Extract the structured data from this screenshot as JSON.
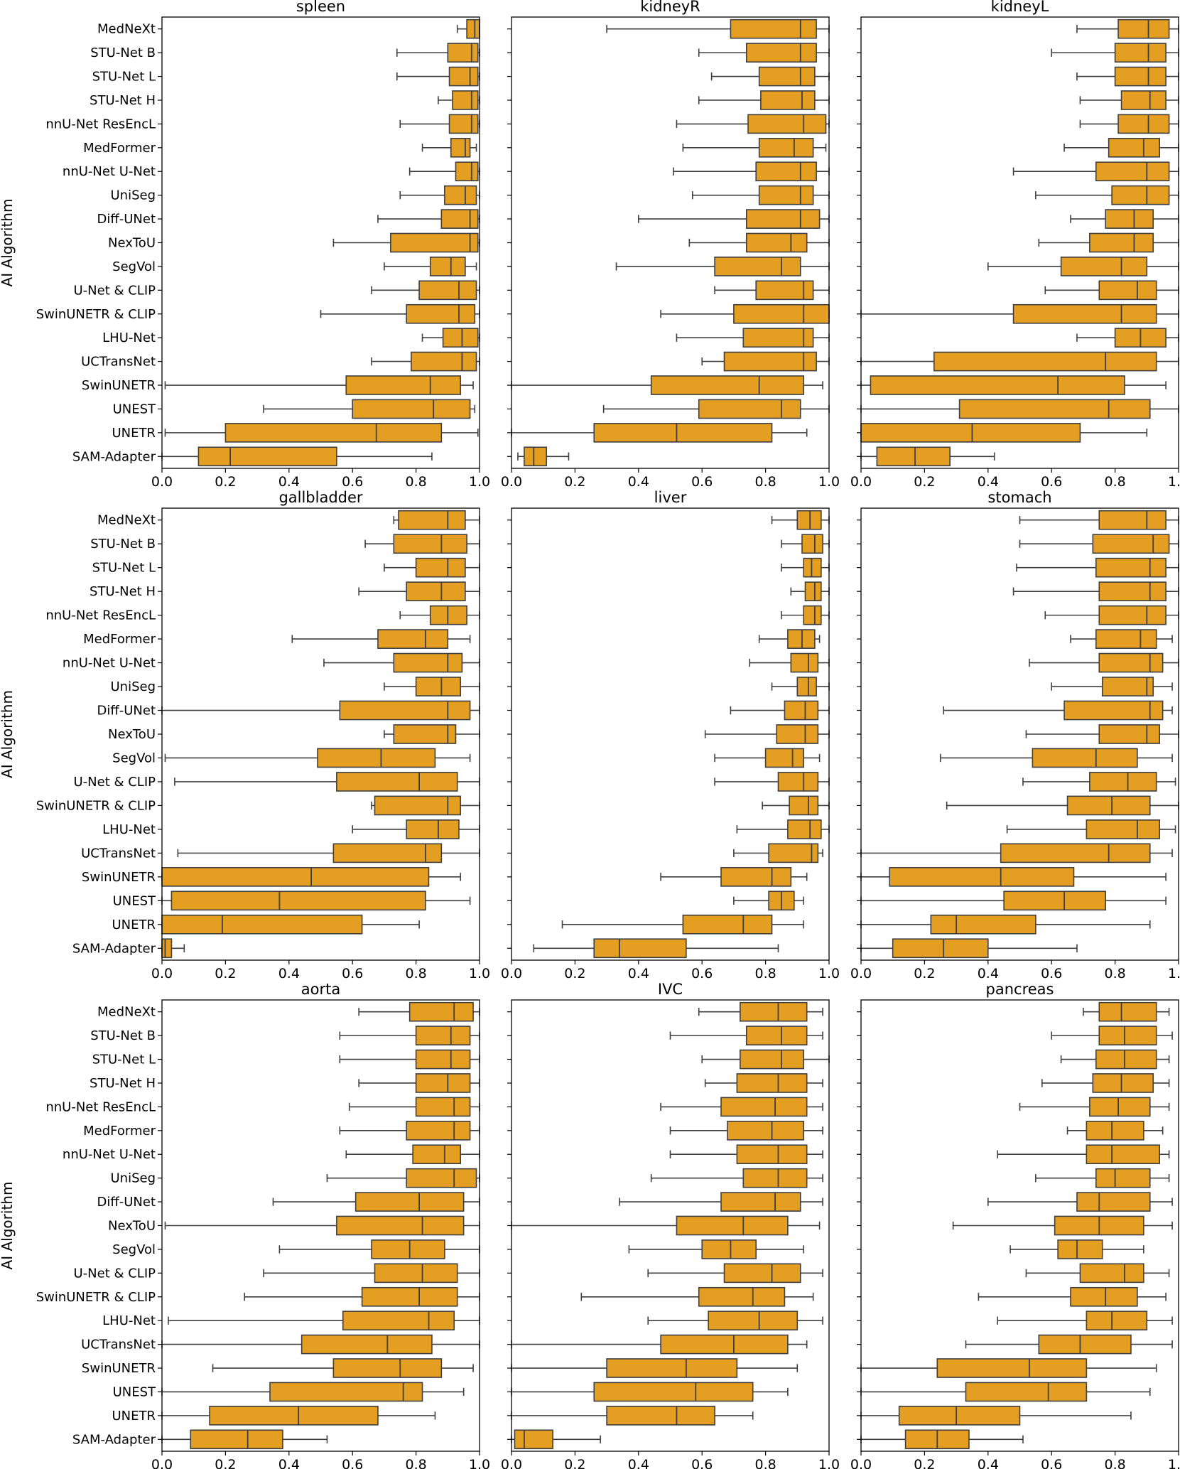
{
  "colors": {
    "box_fill": "#E49E22",
    "line": "#3F3F3F",
    "frame": "#000000"
  },
  "ylabel": "AI Algorithm",
  "categories": [
    "MedNeXt",
    "STU-Net B",
    "STU-Net L",
    "STU-Net H",
    "nnU-Net ResEncL",
    "MedFormer",
    "nnU-Net U-Net",
    "UniSeg",
    "Diff-UNet",
    "NexToU",
    "SegVol",
    "U-Net & CLIP",
    "SwinUNETR & CLIP",
    "LHU-Net",
    "UCTransNet",
    "SwinUNETR",
    "UNEST",
    "UNETR",
    "SAM-Adapter"
  ],
  "xticks": [
    "0.0",
    "0.2",
    "0.4",
    "0.6",
    "0.8",
    "1.0"
  ],
  "chart_data": [
    {
      "type": "boxplot",
      "title": "spleen",
      "xlim": [
        0,
        1
      ],
      "boxes": [
        [
          0.93,
          0.96,
          0.985,
          1.0,
          1.0
        ],
        [
          0.74,
          0.9,
          0.975,
          0.995,
          1.0
        ],
        [
          0.74,
          0.905,
          0.97,
          0.995,
          1.0
        ],
        [
          0.87,
          0.915,
          0.975,
          0.995,
          1.0
        ],
        [
          0.75,
          0.905,
          0.975,
          0.995,
          1.0
        ],
        [
          0.82,
          0.91,
          0.955,
          0.97,
          0.99
        ],
        [
          0.78,
          0.925,
          0.975,
          0.995,
          1.0
        ],
        [
          0.75,
          0.89,
          0.955,
          0.99,
          1.0
        ],
        [
          0.68,
          0.88,
          0.97,
          0.995,
          1.0
        ],
        [
          0.54,
          0.72,
          0.97,
          0.995,
          1.0
        ],
        [
          0.7,
          0.845,
          0.91,
          0.955,
          0.99
        ],
        [
          0.66,
          0.81,
          0.935,
          0.99,
          1.0
        ],
        [
          0.5,
          0.77,
          0.935,
          0.985,
          1.0
        ],
        [
          0.82,
          0.885,
          0.945,
          0.995,
          1.0
        ],
        [
          0.66,
          0.785,
          0.945,
          0.99,
          1.0
        ],
        [
          0.01,
          0.58,
          0.845,
          0.94,
          0.98
        ],
        [
          0.32,
          0.6,
          0.855,
          0.97,
          0.985
        ],
        [
          0.01,
          0.2,
          0.675,
          0.88,
          0.995
        ],
        [
          0.0,
          0.115,
          0.215,
          0.55,
          0.85
        ]
      ]
    },
    {
      "type": "boxplot",
      "title": "kidneyR",
      "xlim": [
        0,
        1
      ],
      "boxes": [
        [
          0.3,
          0.69,
          0.91,
          0.96,
          1.0
        ],
        [
          0.59,
          0.74,
          0.91,
          0.96,
          1.0
        ],
        [
          0.63,
          0.78,
          0.91,
          0.955,
          1.0
        ],
        [
          0.59,
          0.785,
          0.915,
          0.955,
          1.0
        ],
        [
          0.52,
          0.745,
          0.92,
          0.99,
          1.0
        ],
        [
          0.54,
          0.78,
          0.89,
          0.95,
          0.99
        ],
        [
          0.51,
          0.77,
          0.91,
          0.96,
          1.0
        ],
        [
          0.57,
          0.78,
          0.91,
          0.95,
          1.0
        ],
        [
          0.4,
          0.74,
          0.91,
          0.97,
          1.0
        ],
        [
          0.56,
          0.74,
          0.88,
          0.93,
          1.0
        ],
        [
          0.33,
          0.64,
          0.85,
          0.91,
          1.0
        ],
        [
          0.64,
          0.77,
          0.92,
          0.95,
          1.0
        ],
        [
          0.47,
          0.7,
          0.92,
          1.0,
          1.0
        ],
        [
          0.52,
          0.73,
          0.92,
          0.95,
          1.0
        ],
        [
          0.6,
          0.67,
          0.92,
          0.96,
          1.0
        ],
        [
          0.0,
          0.44,
          0.78,
          0.92,
          0.98
        ],
        [
          0.29,
          0.59,
          0.85,
          0.91,
          1.0
        ],
        [
          0.0,
          0.26,
          0.52,
          0.82,
          0.93
        ],
        [
          0.02,
          0.04,
          0.07,
          0.11,
          0.18
        ]
      ]
    },
    {
      "type": "boxplot",
      "title": "kidneyL",
      "xlim": [
        0,
        1
      ],
      "boxes": [
        [
          0.68,
          0.81,
          0.905,
          0.97,
          1.0
        ],
        [
          0.6,
          0.8,
          0.905,
          0.96,
          1.0
        ],
        [
          0.68,
          0.8,
          0.905,
          0.96,
          1.0
        ],
        [
          0.69,
          0.82,
          0.91,
          0.96,
          1.0
        ],
        [
          0.69,
          0.81,
          0.905,
          0.97,
          1.0
        ],
        [
          0.64,
          0.78,
          0.89,
          0.94,
          1.0
        ],
        [
          0.48,
          0.74,
          0.9,
          0.97,
          1.0
        ],
        [
          0.55,
          0.79,
          0.9,
          0.97,
          1.0
        ],
        [
          0.66,
          0.77,
          0.86,
          0.92,
          1.0
        ],
        [
          0.56,
          0.72,
          0.86,
          0.92,
          1.0
        ],
        [
          0.4,
          0.63,
          0.82,
          0.9,
          1.0
        ],
        [
          0.58,
          0.75,
          0.87,
          0.93,
          1.0
        ],
        [
          0.0,
          0.48,
          0.82,
          0.93,
          1.0
        ],
        [
          0.68,
          0.8,
          0.88,
          0.96,
          1.0
        ],
        [
          0.0,
          0.23,
          0.77,
          0.93,
          1.0
        ],
        [
          0.0,
          0.03,
          0.62,
          0.83,
          0.96
        ],
        [
          0.0,
          0.31,
          0.78,
          0.91,
          1.0
        ],
        [
          0.0,
          0.0,
          0.35,
          0.69,
          0.9
        ],
        [
          0.0,
          0.05,
          0.17,
          0.28,
          0.42
        ]
      ]
    },
    {
      "type": "boxplot",
      "title": "gallbladder",
      "xlim": [
        0,
        1
      ],
      "boxes": [
        [
          0.73,
          0.745,
          0.9,
          0.955,
          1.0
        ],
        [
          0.64,
          0.73,
          0.88,
          0.96,
          1.0
        ],
        [
          0.7,
          0.8,
          0.9,
          0.955,
          1.0
        ],
        [
          0.62,
          0.77,
          0.88,
          0.955,
          1.0
        ],
        [
          0.75,
          0.845,
          0.9,
          0.96,
          1.0
        ],
        [
          0.41,
          0.68,
          0.83,
          0.9,
          0.97
        ],
        [
          0.51,
          0.73,
          0.9,
          0.945,
          1.0
        ],
        [
          0.7,
          0.8,
          0.88,
          0.94,
          1.0
        ],
        [
          0.0,
          0.56,
          0.9,
          0.97,
          1.0
        ],
        [
          0.7,
          0.73,
          0.9,
          0.925,
          1.0
        ],
        [
          0.01,
          0.49,
          0.69,
          0.86,
          0.97
        ],
        [
          0.04,
          0.55,
          0.81,
          0.93,
          1.0
        ],
        [
          0.66,
          0.67,
          0.9,
          0.94,
          1.0
        ],
        [
          0.6,
          0.77,
          0.87,
          0.935,
          1.0
        ],
        [
          0.05,
          0.54,
          0.83,
          0.88,
          1.0
        ],
        [
          0.0,
          0.0,
          0.47,
          0.84,
          0.94
        ],
        [
          0.0,
          0.03,
          0.37,
          0.83,
          0.97
        ],
        [
          0.0,
          0.0,
          0.19,
          0.63,
          0.81
        ],
        [
          0.0,
          0.0,
          0.01,
          0.03,
          0.07
        ]
      ]
    },
    {
      "type": "boxplot",
      "title": "liver",
      "xlim": [
        0,
        1
      ],
      "boxes": [
        [
          0.82,
          0.9,
          0.94,
          0.975,
          1.0
        ],
        [
          0.85,
          0.915,
          0.955,
          0.98,
          1.0
        ],
        [
          0.85,
          0.92,
          0.945,
          0.975,
          1.0
        ],
        [
          0.88,
          0.925,
          0.955,
          0.975,
          1.0
        ],
        [
          0.85,
          0.92,
          0.955,
          0.975,
          1.0
        ],
        [
          0.78,
          0.87,
          0.915,
          0.955,
          0.97
        ],
        [
          0.75,
          0.88,
          0.935,
          0.965,
          1.0
        ],
        [
          0.82,
          0.9,
          0.935,
          0.96,
          1.0
        ],
        [
          0.69,
          0.86,
          0.925,
          0.965,
          1.0
        ],
        [
          0.61,
          0.835,
          0.925,
          0.965,
          1.0
        ],
        [
          0.64,
          0.8,
          0.885,
          0.92,
          0.97
        ],
        [
          0.64,
          0.84,
          0.92,
          0.965,
          1.0
        ],
        [
          0.79,
          0.875,
          0.935,
          0.965,
          1.0
        ],
        [
          0.71,
          0.87,
          0.94,
          0.975,
          1.0
        ],
        [
          0.7,
          0.81,
          0.945,
          0.965,
          0.98
        ],
        [
          0.47,
          0.66,
          0.82,
          0.88,
          0.93
        ],
        [
          0.7,
          0.81,
          0.85,
          0.89,
          0.92
        ],
        [
          0.16,
          0.54,
          0.73,
          0.82,
          0.92
        ],
        [
          0.07,
          0.26,
          0.34,
          0.55,
          0.84
        ]
      ]
    },
    {
      "type": "boxplot",
      "title": "stomach",
      "xlim": [
        0,
        1
      ],
      "boxes": [
        [
          0.5,
          0.75,
          0.9,
          0.96,
          1.0
        ],
        [
          0.5,
          0.73,
          0.92,
          0.97,
          1.0
        ],
        [
          0.49,
          0.74,
          0.91,
          0.96,
          1.0
        ],
        [
          0.48,
          0.75,
          0.91,
          0.96,
          1.0
        ],
        [
          0.58,
          0.75,
          0.9,
          0.96,
          1.0
        ],
        [
          0.66,
          0.74,
          0.88,
          0.93,
          0.98
        ],
        [
          0.53,
          0.75,
          0.91,
          0.95,
          1.0
        ],
        [
          0.6,
          0.76,
          0.9,
          0.92,
          0.98
        ],
        [
          0.26,
          0.64,
          0.91,
          0.95,
          0.98
        ],
        [
          0.52,
          0.75,
          0.9,
          0.94,
          1.0
        ],
        [
          0.25,
          0.54,
          0.74,
          0.87,
          0.98
        ],
        [
          0.51,
          0.72,
          0.84,
          0.93,
          0.99
        ],
        [
          0.27,
          0.65,
          0.79,
          0.91,
          1.0
        ],
        [
          0.46,
          0.71,
          0.87,
          0.94,
          0.99
        ],
        [
          0.0,
          0.44,
          0.78,
          0.91,
          0.98
        ],
        [
          0.0,
          0.09,
          0.44,
          0.67,
          0.96
        ],
        [
          0.0,
          0.45,
          0.64,
          0.77,
          0.96
        ],
        [
          0.0,
          0.22,
          0.3,
          0.55,
          0.91
        ],
        [
          0.0,
          0.1,
          0.26,
          0.4,
          0.68
        ]
      ]
    },
    {
      "type": "boxplot",
      "title": "aorta",
      "xlim": [
        0,
        1
      ],
      "boxes": [
        [
          0.62,
          0.78,
          0.92,
          0.98,
          1.0
        ],
        [
          0.56,
          0.8,
          0.91,
          0.97,
          1.0
        ],
        [
          0.56,
          0.8,
          0.91,
          0.97,
          1.0
        ],
        [
          0.62,
          0.8,
          0.9,
          0.97,
          1.0
        ],
        [
          0.59,
          0.8,
          0.92,
          0.97,
          1.0
        ],
        [
          0.56,
          0.77,
          0.92,
          0.97,
          1.0
        ],
        [
          0.58,
          0.79,
          0.89,
          0.94,
          1.0
        ],
        [
          0.52,
          0.77,
          0.92,
          0.99,
          1.0
        ],
        [
          0.35,
          0.61,
          0.81,
          0.95,
          1.0
        ],
        [
          0.01,
          0.55,
          0.82,
          0.95,
          1.0
        ],
        [
          0.37,
          0.66,
          0.78,
          0.89,
          1.0
        ],
        [
          0.32,
          0.67,
          0.82,
          0.93,
          1.0
        ],
        [
          0.26,
          0.63,
          0.81,
          0.93,
          1.0
        ],
        [
          0.02,
          0.57,
          0.84,
          0.92,
          1.0
        ],
        [
          0.0,
          0.44,
          0.71,
          0.85,
          1.0
        ],
        [
          0.16,
          0.54,
          0.75,
          0.88,
          0.98
        ],
        [
          0.0,
          0.34,
          0.76,
          0.82,
          0.95
        ],
        [
          0.0,
          0.15,
          0.43,
          0.68,
          0.86
        ],
        [
          0.0,
          0.09,
          0.27,
          0.38,
          0.52
        ]
      ]
    },
    {
      "type": "boxplot",
      "title": "IVC",
      "xlim": [
        0,
        1
      ],
      "boxes": [
        [
          0.59,
          0.72,
          0.84,
          0.93,
          0.98
        ],
        [
          0.5,
          0.74,
          0.85,
          0.93,
          0.98
        ],
        [
          0.6,
          0.72,
          0.85,
          0.92,
          1.0
        ],
        [
          0.61,
          0.71,
          0.84,
          0.93,
          0.98
        ],
        [
          0.47,
          0.66,
          0.83,
          0.93,
          0.98
        ],
        [
          0.5,
          0.68,
          0.82,
          0.92,
          0.98
        ],
        [
          0.5,
          0.71,
          0.84,
          0.93,
          0.98
        ],
        [
          0.44,
          0.73,
          0.84,
          0.93,
          0.98
        ],
        [
          0.34,
          0.66,
          0.83,
          0.91,
          0.98
        ],
        [
          0.0,
          0.52,
          0.73,
          0.87,
          0.97
        ],
        [
          0.37,
          0.6,
          0.69,
          0.77,
          0.92
        ],
        [
          0.43,
          0.67,
          0.82,
          0.91,
          0.98
        ],
        [
          0.22,
          0.59,
          0.76,
          0.86,
          0.95
        ],
        [
          0.43,
          0.62,
          0.78,
          0.9,
          0.98
        ],
        [
          0.0,
          0.47,
          0.7,
          0.87,
          0.93
        ],
        [
          0.0,
          0.3,
          0.55,
          0.71,
          0.9
        ],
        [
          0.0,
          0.26,
          0.58,
          0.76,
          0.87
        ],
        [
          0.0,
          0.3,
          0.52,
          0.64,
          0.76
        ],
        [
          0.0,
          0.01,
          0.04,
          0.13,
          0.28
        ]
      ]
    },
    {
      "type": "boxplot",
      "title": "pancreas",
      "xlim": [
        0,
        1
      ],
      "boxes": [
        [
          0.7,
          0.75,
          0.82,
          0.93,
          0.97
        ],
        [
          0.6,
          0.75,
          0.83,
          0.93,
          0.98
        ],
        [
          0.63,
          0.74,
          0.83,
          0.93,
          0.97
        ],
        [
          0.57,
          0.73,
          0.82,
          0.92,
          0.97
        ],
        [
          0.5,
          0.72,
          0.81,
          0.91,
          0.97
        ],
        [
          0.65,
          0.71,
          0.79,
          0.89,
          0.95
        ],
        [
          0.43,
          0.71,
          0.79,
          0.94,
          0.97
        ],
        [
          0.55,
          0.74,
          0.8,
          0.91,
          0.97
        ],
        [
          0.4,
          0.68,
          0.75,
          0.91,
          0.98
        ],
        [
          0.29,
          0.61,
          0.75,
          0.89,
          0.98
        ],
        [
          0.47,
          0.62,
          0.68,
          0.76,
          0.89
        ],
        [
          0.52,
          0.69,
          0.83,
          0.89,
          0.97
        ],
        [
          0.37,
          0.66,
          0.77,
          0.87,
          0.96
        ],
        [
          0.43,
          0.71,
          0.79,
          0.9,
          0.98
        ],
        [
          0.33,
          0.56,
          0.69,
          0.85,
          0.98
        ],
        [
          0.0,
          0.24,
          0.53,
          0.71,
          0.93
        ],
        [
          0.0,
          0.33,
          0.59,
          0.71,
          0.91
        ],
        [
          0.0,
          0.12,
          0.3,
          0.5,
          0.85
        ],
        [
          0.0,
          0.14,
          0.24,
          0.34,
          0.51
        ]
      ]
    }
  ]
}
